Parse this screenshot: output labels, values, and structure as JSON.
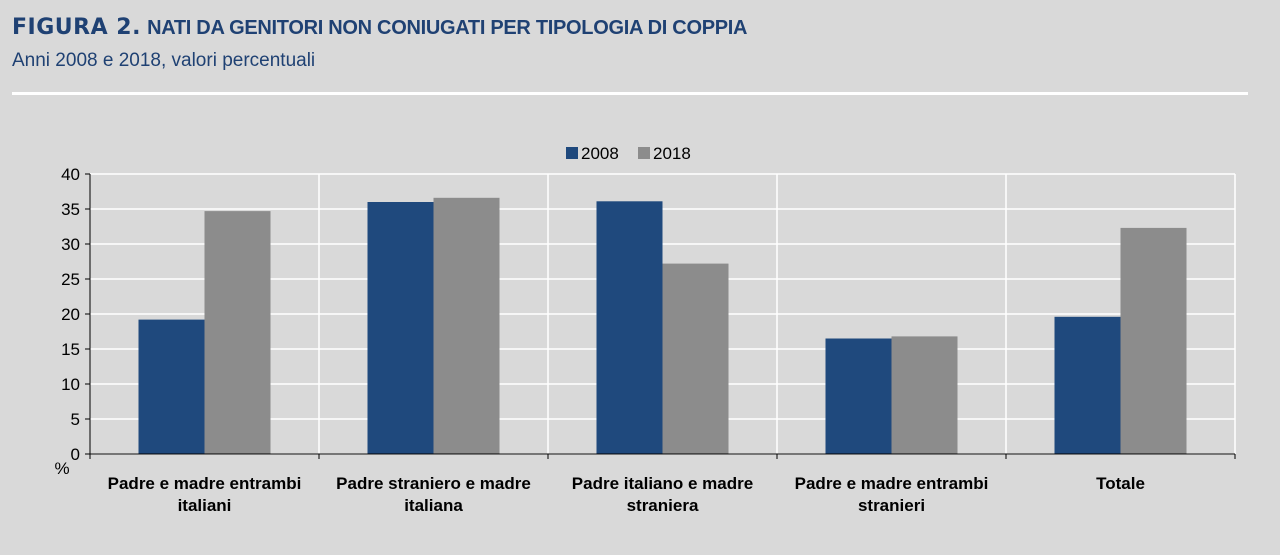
{
  "header": {
    "figure_label": "FIGURA 2.",
    "title": "NATI DA GENITORI NON CONIUGATI PER TIPOLOGIA DI COPPIA",
    "subtitle": "Anni 2008 e 2018, valori percentuali"
  },
  "colors": {
    "series_2008": "#1f497d",
    "series_2018": "#8c8c8c",
    "title": "#1f4173",
    "background": "#d9d9d9",
    "grid": "#ffffff"
  },
  "chart_data": {
    "type": "bar",
    "categories": [
      [
        "Padre e madre entrambi",
        "italiani"
      ],
      [
        "Padre straniero e madre",
        "italiana"
      ],
      [
        "Padre italiano e madre",
        "straniera"
      ],
      [
        "Padre e madre entrambi",
        "stranieri"
      ],
      [
        "Totale"
      ]
    ],
    "series": [
      {
        "name": "2008",
        "values": [
          19.2,
          36.0,
          36.1,
          16.5,
          19.6
        ]
      },
      {
        "name": "2018",
        "values": [
          34.7,
          36.6,
          27.2,
          16.8,
          32.3
        ]
      }
    ],
    "ylim": [
      0,
      40
    ],
    "yticks": [
      0,
      5,
      10,
      15,
      20,
      25,
      30,
      35,
      40
    ],
    "ylabel": "%",
    "legend": "top-center",
    "grid": true
  }
}
